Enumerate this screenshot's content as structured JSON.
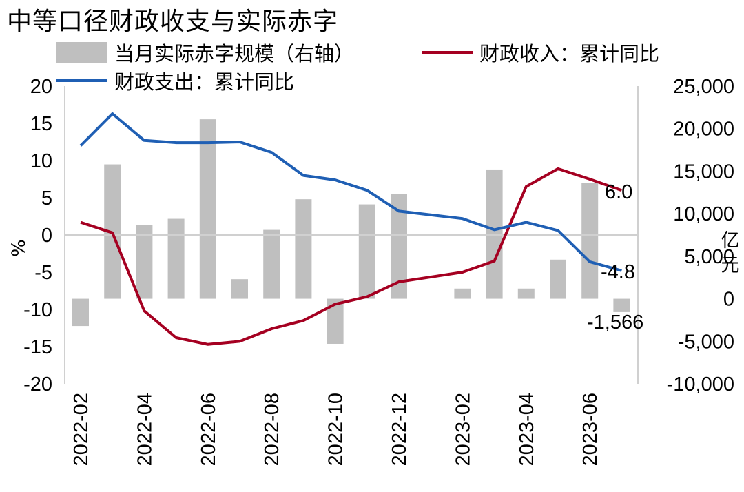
{
  "title": "中等口径财政收支与实际赤字",
  "legend": {
    "bar_label": "当月实际赤字规模（右轴）",
    "revenue_label": "财政收入：累计同比",
    "expenditure_label": "财政支出：累计同比"
  },
  "axes": {
    "left_unit": "%",
    "right_unit_1": "亿",
    "right_unit_2": "元",
    "left_ticks": [
      "20",
      "15",
      "10",
      "5",
      "0",
      "-5",
      "-10",
      "-15",
      "-20"
    ],
    "right_ticks": [
      "25,000",
      "20,000",
      "15,000",
      "10,000",
      "5,000",
      "0",
      "-5,000",
      "-10,000"
    ],
    "x_ticks": [
      "2022-02",
      "2022-04",
      "2022-06",
      "2022-08",
      "2022-10",
      "2022-12",
      "2023-02",
      "2023-04",
      "2023-06"
    ]
  },
  "annotations": {
    "revenue_last": "6.0",
    "expenditure_last": "-4.8",
    "deficit_last": "-1,566"
  },
  "colors": {
    "bar": "#bfbfbf",
    "revenue": "#a50021",
    "expenditure": "#1f5fb4",
    "axis": "#d0d0d0"
  },
  "chart_data": {
    "type": "bar+line",
    "title": "中等口径财政收支与实际赤字",
    "categories": [
      "2022-02",
      "2022-03",
      "2022-04",
      "2022-05",
      "2022-06",
      "2022-07",
      "2022-08",
      "2022-09",
      "2022-10",
      "2022-11",
      "2022-12",
      "2023-01",
      "2023-02",
      "2023-03",
      "2023-04",
      "2023-05",
      "2023-06",
      "2023-07"
    ],
    "ylim_left": [
      -20,
      20
    ],
    "ylim_right": [
      -10000,
      25000
    ],
    "series": [
      {
        "name": "当月实际赤字规模（右轴）",
        "type": "bar",
        "axis": "right",
        "values": [
          -3200,
          15800,
          8700,
          9400,
          21100,
          2300,
          8100,
          11700,
          -5300,
          11100,
          12300,
          null,
          1200,
          15200,
          1200,
          4600,
          13600,
          -1566
        ]
      },
      {
        "name": "财政收入：累计同比",
        "type": "line",
        "axis": "left",
        "values": [
          1.7,
          0.3,
          -10.2,
          -13.8,
          -14.7,
          -14.3,
          -12.6,
          -11.5,
          -9.3,
          -8.3,
          -6.3,
          null,
          -5.0,
          -3.5,
          6.5,
          8.9,
          7.5,
          6.0
        ]
      },
      {
        "name": "财政支出：累计同比",
        "type": "line",
        "axis": "left",
        "values": [
          12.0,
          16.3,
          12.7,
          12.4,
          12.4,
          12.5,
          11.1,
          8.0,
          7.4,
          6.0,
          3.2,
          null,
          2.2,
          0.7,
          1.7,
          0.6,
          -3.6,
          -4.8
        ]
      }
    ]
  }
}
